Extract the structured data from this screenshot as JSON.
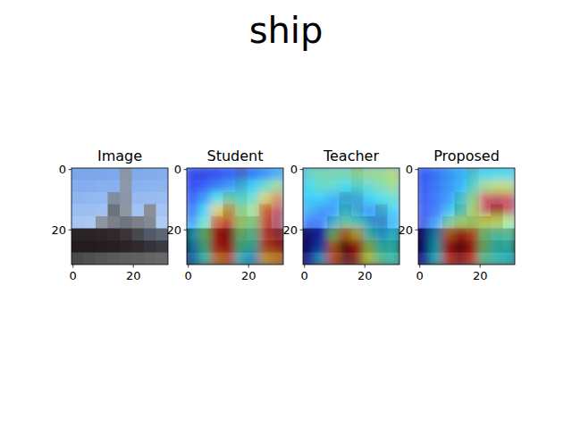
{
  "title": "ship",
  "chart_data": [
    {
      "type": "image",
      "title": "Image",
      "xlim": [
        -0.5,
        31.5
      ],
      "ylim": [
        31.5,
        -0.5
      ],
      "xticks": [
        0,
        20
      ],
      "yticks": [
        0,
        20
      ],
      "cells": [
        [
          "#7aa6ea",
          "#7aa6ea",
          "#7ca8ea",
          "#7ca8ec",
          "#8a96a8",
          "#80aaec",
          "#82acec",
          "#84aeee"
        ],
        [
          "#84aeee",
          "#84aeee",
          "#86b0ee",
          "#88b0ee",
          "#8a98aa",
          "#8ab2ee",
          "#8cb4f0",
          "#8eb4f0"
        ],
        [
          "#90b6f0",
          "#92b8f0",
          "#94b8f0",
          "#7f8ea0",
          "#8a96a8",
          "#96baf0",
          "#98bcf0",
          "#9abcf2"
        ],
        [
          "#9cbef2",
          "#9ebef2",
          "#a0c0f2",
          "#6a7280",
          "#8e96a4",
          "#a2c2f2",
          "#8a8f99",
          "#a6c4f2"
        ],
        [
          "#a8c6f2",
          "#aac8f2",
          "#8c94a0",
          "#7a7f88",
          "#6e7480",
          "#7a7f88",
          "#848a94",
          "#b0ccf2"
        ],
        [
          "#2a2426",
          "#2a2426",
          "#2c2628",
          "#30282a",
          "#3a3436",
          "#464850",
          "#505a6a",
          "#5a6472"
        ],
        [
          "#221c1e",
          "#221c1e",
          "#241e20",
          "#262022",
          "#2a2426",
          "#302a2c",
          "#36323a",
          "#3a3a40"
        ],
        [
          "#4a4a4a",
          "#505050",
          "#555555",
          "#5a5a5a",
          "#5e5e5e",
          "#606060",
          "#646464",
          "#686868"
        ]
      ]
    },
    {
      "type": "heatmap",
      "title": "Student",
      "xlim": [
        -0.5,
        31.5
      ],
      "ylim": [
        31.5,
        -0.5
      ],
      "xticks": [
        0,
        20
      ],
      "yticks": [
        0,
        20
      ],
      "cells": [
        [
          0.1,
          0.1,
          0.12,
          0.15,
          0.18,
          0.2,
          0.25,
          0.3
        ],
        [
          0.12,
          0.15,
          0.2,
          0.25,
          0.3,
          0.35,
          0.45,
          0.55
        ],
        [
          0.15,
          0.25,
          0.4,
          0.45,
          0.4,
          0.45,
          0.65,
          0.75
        ],
        [
          0.2,
          0.35,
          0.65,
          0.7,
          0.5,
          0.55,
          0.8,
          0.9
        ],
        [
          0.25,
          0.45,
          0.8,
          0.85,
          0.55,
          0.5,
          0.85,
          0.95
        ],
        [
          0.35,
          0.5,
          0.9,
          0.95,
          0.5,
          0.45,
          0.85,
          0.95
        ],
        [
          0.3,
          0.45,
          0.85,
          0.9,
          0.45,
          0.4,
          0.8,
          0.9
        ],
        [
          0.25,
          0.4,
          0.75,
          0.8,
          0.35,
          0.3,
          0.7,
          0.75
        ]
      ]
    },
    {
      "type": "heatmap",
      "title": "Teacher",
      "xlim": [
        -0.5,
        31.5
      ],
      "ylim": [
        31.5,
        -0.5
      ],
      "xticks": [
        0,
        20
      ],
      "yticks": [
        0,
        20
      ],
      "cells": [
        [
          0.45,
          0.5,
          0.5,
          0.5,
          0.5,
          0.55,
          0.55,
          0.6
        ],
        [
          0.4,
          0.45,
          0.45,
          0.4,
          0.4,
          0.45,
          0.5,
          0.55
        ],
        [
          0.35,
          0.35,
          0.3,
          0.3,
          0.3,
          0.35,
          0.4,
          0.45
        ],
        [
          0.3,
          0.25,
          0.25,
          0.35,
          0.3,
          0.25,
          0.3,
          0.35
        ],
        [
          0.2,
          0.2,
          0.3,
          0.45,
          0.4,
          0.3,
          0.25,
          0.3
        ],
        [
          0.05,
          0.15,
          0.5,
          0.75,
          0.65,
          0.4,
          0.3,
          0.35
        ],
        [
          0.05,
          0.2,
          0.75,
          1.0,
          0.9,
          0.55,
          0.4,
          0.4
        ],
        [
          0.1,
          0.3,
          0.8,
          1.0,
          0.95,
          0.6,
          0.45,
          0.4
        ]
      ]
    },
    {
      "type": "heatmap",
      "title": "Proposed",
      "xlim": [
        -0.5,
        31.5
      ],
      "ylim": [
        31.5,
        -0.5
      ],
      "xticks": [
        0,
        20
      ],
      "yticks": [
        0,
        20
      ],
      "cells": [
        [
          0.15,
          0.2,
          0.25,
          0.3,
          0.35,
          0.4,
          0.4,
          0.4
        ],
        [
          0.15,
          0.2,
          0.25,
          0.3,
          0.4,
          0.55,
          0.6,
          0.6
        ],
        [
          0.15,
          0.2,
          0.25,
          0.35,
          0.5,
          0.85,
          0.9,
          0.85
        ],
        [
          0.15,
          0.2,
          0.3,
          0.4,
          0.55,
          0.9,
          0.95,
          0.9
        ],
        [
          0.1,
          0.25,
          0.45,
          0.55,
          0.55,
          0.6,
          0.6,
          0.55
        ],
        [
          0.05,
          0.3,
          0.75,
          0.9,
          0.8,
          0.5,
          0.45,
          0.45
        ],
        [
          0.05,
          0.35,
          0.9,
          1.0,
          0.9,
          0.5,
          0.4,
          0.4
        ],
        [
          0.1,
          0.35,
          0.85,
          0.95,
          0.85,
          0.45,
          0.4,
          0.35
        ]
      ]
    }
  ]
}
